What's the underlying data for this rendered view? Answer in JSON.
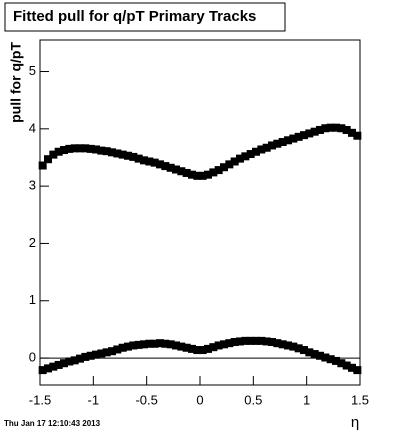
{
  "chart_data": {
    "type": "scatter",
    "title": "Fitted pull for q/pT  Primary Tracks",
    "y_label": "pull for q/pT",
    "x_label": "η",
    "footer": "Thu Jan 17 12:10:43 2013",
    "x": [
      -1.475,
      -1.425,
      -1.375,
      -1.325,
      -1.275,
      -1.225,
      -1.175,
      -1.125,
      -1.075,
      -1.025,
      -0.975,
      -0.925,
      -0.875,
      -0.825,
      -0.775,
      -0.725,
      -0.675,
      -0.625,
      -0.575,
      -0.525,
      -0.475,
      -0.425,
      -0.375,
      -0.325,
      -0.275,
      -0.225,
      -0.175,
      -0.125,
      -0.075,
      -0.025,
      0.025,
      0.075,
      0.125,
      0.175,
      0.225,
      0.275,
      0.325,
      0.375,
      0.425,
      0.475,
      0.525,
      0.575,
      0.625,
      0.675,
      0.725,
      0.775,
      0.825,
      0.875,
      0.925,
      0.975,
      1.025,
      1.075,
      1.125,
      1.175,
      1.225,
      1.275,
      1.325,
      1.375,
      1.425,
      1.475
    ],
    "series": [
      {
        "color": "#000000",
        "values": [
          3.36,
          3.47,
          3.55,
          3.6,
          3.63,
          3.65,
          3.66,
          3.66,
          3.66,
          3.65,
          3.64,
          3.62,
          3.61,
          3.59,
          3.57,
          3.55,
          3.53,
          3.51,
          3.48,
          3.45,
          3.43,
          3.41,
          3.38,
          3.35,
          3.32,
          3.29,
          3.26,
          3.23,
          3.2,
          3.18,
          3.18,
          3.2,
          3.24,
          3.28,
          3.33,
          3.38,
          3.43,
          3.48,
          3.52,
          3.56,
          3.6,
          3.64,
          3.67,
          3.71,
          3.74,
          3.77,
          3.8,
          3.83,
          3.86,
          3.89,
          3.92,
          3.95,
          3.98,
          4.01,
          4.02,
          4.02,
          4.01,
          3.98,
          3.93,
          3.88
        ]
      },
      {
        "color": "#000000",
        "values": [
          -0.21,
          -0.18,
          -0.15,
          -0.12,
          -0.09,
          -0.06,
          -0.04,
          -0.01,
          0.02,
          0.04,
          0.06,
          0.08,
          0.1,
          0.12,
          0.15,
          0.18,
          0.2,
          0.22,
          0.23,
          0.24,
          0.25,
          0.25,
          0.26,
          0.25,
          0.24,
          0.22,
          0.2,
          0.18,
          0.16,
          0.14,
          0.14,
          0.16,
          0.19,
          0.22,
          0.24,
          0.26,
          0.28,
          0.29,
          0.3,
          0.3,
          0.3,
          0.3,
          0.29,
          0.28,
          0.26,
          0.24,
          0.22,
          0.2,
          0.17,
          0.14,
          0.1,
          0.07,
          0.04,
          0.01,
          -0.02,
          -0.05,
          -0.09,
          -0.13,
          -0.17,
          -0.21
        ]
      }
    ],
    "hline": 0,
    "xlim": [
      -1.5,
      1.5
    ],
    "xticks": [
      -1.5,
      -1,
      -0.5,
      0,
      0.5,
      1,
      1.5
    ],
    "ylim": [
      -0.47,
      5.55
    ],
    "yticks": [
      0,
      1,
      2,
      3,
      4,
      5
    ]
  }
}
